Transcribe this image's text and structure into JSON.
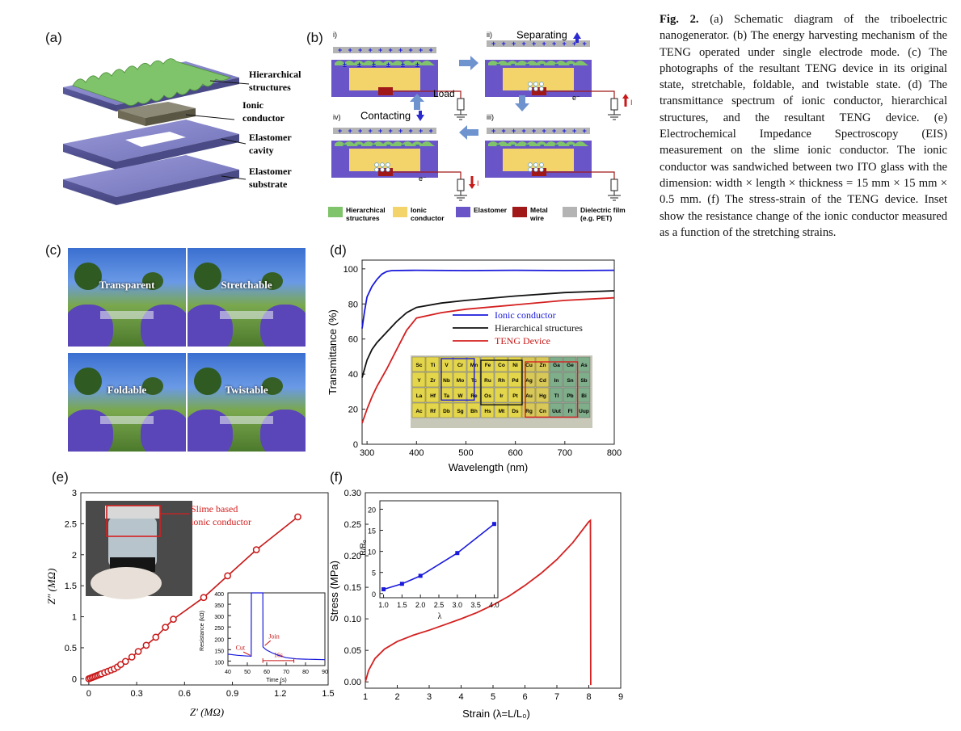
{
  "panels": {
    "a": "(a)",
    "b": "(b)",
    "c": "(c)",
    "d": "(d)",
    "e": "(e)",
    "f": "(f)"
  },
  "schematic_a": {
    "layer1": [
      "Hierarchical",
      "structures"
    ],
    "layer2": [
      "Ionic",
      "conductor"
    ],
    "layer3": [
      "Elastomer",
      "cavity"
    ],
    "layer4": [
      "Elastomer",
      "substrate"
    ]
  },
  "mechanism_b": {
    "steps": [
      "i)",
      "ii)",
      "iii)",
      "iv)"
    ],
    "separating": "Separating",
    "contacting": "Contacting",
    "load": "Load",
    "electron": "e⁻",
    "current": "I",
    "legend": [
      {
        "label": [
          "Hierarchical",
          "structures"
        ],
        "color": "#7fc36a"
      },
      {
        "label": [
          "Ionic",
          "conductor"
        ],
        "color": "#f3d46a"
      },
      {
        "label": [
          "Elastomer"
        ],
        "color": "#6a55c8"
      },
      {
        "label": [
          "Metal",
          "wire"
        ],
        "color": "#a01818"
      },
      {
        "label": [
          "Dielectric film",
          "(e.g. PET)"
        ],
        "color": "#b4b4b4"
      }
    ]
  },
  "photos_c": [
    "Transparent",
    "Stretchable",
    "Foldable",
    "Twistable"
  ],
  "chart_d": {
    "ylabel": "Transmittance (%)",
    "xlabel": "Wavelength (nm)",
    "xticks": [
      "300",
      "400",
      "500",
      "600",
      "700",
      "800"
    ],
    "yticks": [
      "0",
      "20",
      "40",
      "60",
      "80",
      "100"
    ],
    "legend": [
      "Ionic conductor",
      "Hierarchical structures",
      "TENG Device"
    ],
    "periodic_rows": [
      [
        "Sc",
        "Ti",
        "V",
        "Cr",
        "Mn",
        "Fe",
        "Co",
        "Ni",
        "Cu",
        "Zn",
        "Ga",
        "Ge",
        "As"
      ],
      [
        "Y",
        "Zr",
        "Nb",
        "Mo",
        "Tc",
        "Ru",
        "Rh",
        "Pd",
        "Ag",
        "Cd",
        "In",
        "Sn",
        "Sb"
      ],
      [
        "La",
        "Hf",
        "Ta",
        "W",
        "Re",
        "Os",
        "Ir",
        "Pt",
        "Au",
        "Hg",
        "Tl",
        "Pb",
        "Bi"
      ],
      [
        "Ac",
        "Rf",
        "Db",
        "Sg",
        "Bh",
        "Hs",
        "Mt",
        "Ds",
        "Rg",
        "Cn",
        "Uut",
        "Fl",
        "Uup"
      ]
    ]
  },
  "chart_e": {
    "ylabel": "Z″ (MΩ)",
    "xlabel": "Z′ (MΩ)",
    "xticks": [
      "0",
      "0.3",
      "0.6",
      "0.9",
      "1.2",
      "1.5"
    ],
    "yticks": [
      "0",
      "0.5",
      "1",
      "1.5",
      "2",
      "2.5",
      "3"
    ],
    "annotation": [
      "Slime based",
      "ionic conductor"
    ],
    "inset": {
      "ylabel": "Resistance (kΩ)",
      "xlabel": "Time (s)",
      "xticks": [
        "40",
        "50",
        "60",
        "70",
        "80",
        "90"
      ],
      "yticks": [
        "100",
        "150",
        "200",
        "250",
        "300",
        "350",
        "400"
      ],
      "cut": "Cut",
      "join": "Join",
      "duration": "16s"
    }
  },
  "chart_f": {
    "ylabel": "Stress (MPa)",
    "xlabel": "Strain  (λ=L/L₀)",
    "xticks": [
      "1",
      "2",
      "3",
      "4",
      "5",
      "6",
      "7",
      "8",
      "9"
    ],
    "yticks": [
      "0.00",
      "0.05",
      "0.10",
      "0.15",
      "0.20",
      "0.25",
      "0.30"
    ],
    "inset": {
      "ylabel": "R/R₀",
      "xlabel": "λ",
      "xticks": [
        "1.0",
        "1.5",
        "2.0",
        "2.5",
        "3.0",
        "3.5",
        "4.0"
      ],
      "yticks": [
        "0",
        "5",
        "10",
        "15",
        "20"
      ]
    }
  },
  "chart_data": [
    {
      "type": "line",
      "ylabel": "Transmittance (%)",
      "xlabel": "Wavelength (nm)",
      "xlim": [
        290,
        800
      ],
      "ylim": [
        0,
        105
      ],
      "series": [
        {
          "name": "Ionic conductor",
          "color": "#1a1adc",
          "x": [
            290,
            295,
            300,
            310,
            320,
            330,
            340,
            350,
            400,
            500,
            600,
            700,
            800
          ],
          "y": [
            66,
            76,
            84,
            90,
            94,
            97,
            98.5,
            99,
            99.2,
            99,
            99.2,
            99,
            99.2
          ]
        },
        {
          "name": "Hierarchical structures",
          "color": "#111111",
          "x": [
            290,
            300,
            310,
            320,
            340,
            360,
            380,
            400,
            450,
            500,
            600,
            700,
            800
          ],
          "y": [
            38,
            48,
            54,
            58,
            64,
            70,
            75,
            78,
            80.5,
            82,
            84.5,
            86.5,
            87.5
          ]
        },
        {
          "name": "TENG Device",
          "color": "#d42020",
          "x": [
            290,
            300,
            310,
            320,
            340,
            360,
            380,
            400,
            450,
            500,
            600,
            700,
            800
          ],
          "y": [
            12,
            20,
            27,
            33,
            43,
            54,
            65,
            72,
            75,
            77,
            79.5,
            82,
            83.5
          ]
        }
      ]
    },
    {
      "type": "scatter",
      "ylabel": "Z″ (MΩ)",
      "xlabel": "Z′ (MΩ)",
      "xlim": [
        -0.05,
        1.5
      ],
      "ylim": [
        -0.1,
        3
      ],
      "series": [
        {
          "name": "",
          "color": "#c81818",
          "x": [
            0,
            0.01,
            0.02,
            0.03,
            0.04,
            0.05,
            0.06,
            0.07,
            0.08,
            0.1,
            0.12,
            0.14,
            0.16,
            0.18,
            0.2,
            0.23,
            0.27,
            0.31,
            0.36,
            0.42,
            0.48,
            0.53,
            0.72,
            0.87,
            1.05,
            1.31
          ],
          "y": [
            0,
            0.01,
            0.02,
            0.03,
            0.04,
            0.05,
            0.06,
            0.07,
            0.08,
            0.1,
            0.12,
            0.14,
            0.16,
            0.19,
            0.23,
            0.28,
            0.35,
            0.44,
            0.54,
            0.67,
            0.83,
            0.96,
            1.31,
            1.66,
            2.08,
            2.61
          ]
        }
      ]
    },
    {
      "type": "line",
      "ylabel": "Resistance (kΩ)",
      "xlabel": "Time (s)",
      "xlim": [
        40,
        90
      ],
      "ylim": [
        80,
        400
      ],
      "series": [
        {
          "name": "",
          "color": "#1a1adc",
          "x": [
            40,
            45,
            50,
            51,
            52,
            52.1,
            58,
            58.1,
            59,
            60,
            63,
            66,
            70,
            75,
            80,
            85,
            90
          ],
          "y": [
            130,
            125,
            122,
            122,
            121,
            400,
            400,
            162,
            155,
            148,
            135,
            125,
            115,
            110,
            108,
            107,
            106
          ]
        }
      ]
    },
    {
      "type": "line",
      "ylabel": "Stress (MPa)",
      "xlabel": "Strain  (λ=L/L₀)",
      "xlim": [
        1,
        9
      ],
      "ylim": [
        -0.01,
        0.3
      ],
      "series": [
        {
          "name": "",
          "color": "#d42020",
          "x": [
            1,
            1.1,
            1.3,
            1.6,
            2,
            2.5,
            3,
            3.5,
            4,
            4.5,
            5,
            5.5,
            6,
            6.5,
            7,
            7.5,
            8,
            8.05,
            8.06
          ],
          "y": [
            0,
            0.018,
            0.037,
            0.052,
            0.064,
            0.074,
            0.082,
            0.091,
            0.1,
            0.11,
            0.122,
            0.136,
            0.153,
            0.172,
            0.194,
            0.221,
            0.254,
            0.256,
            -0.005
          ]
        }
      ]
    },
    {
      "type": "line",
      "ylabel": "R/R₀",
      "xlabel": "λ",
      "xlim": [
        0.9,
        4.1
      ],
      "ylim": [
        -1,
        22
      ],
      "series": [
        {
          "name": "",
          "color": "#1a1adc",
          "x": [
            1.0,
            1.5,
            2.0,
            3.0,
            4.0
          ],
          "y": [
            1.0,
            2.3,
            4.2,
            9.6,
            16.5
          ]
        }
      ]
    }
  ],
  "caption": {
    "label": "Fig.  2.",
    "text": "(a) Schematic diagram of the triboelectric nanogenerator. (b) The energy harvesting mechanism of the TENG operated under single electrode mode. (c) The photographs of the resultant TENG device in its original state, stretchable, foldable, and twistable state. (d) The transmittance spectrum of ionic conductor, hierarchical structures, and the resultant TENG device. (e) Electrochemical Impedance Spectroscopy (EIS) measurement on the slime ionic conductor. The ionic conductor was sandwiched between two ITO glass with the dimension: width × length × thickness = 15 mm × 15 mm × 0.5 mm. (f) The stress-strain of the TENG device. Inset show the resistance change of the ionic conductor measured as a function of the stretching strains."
  }
}
